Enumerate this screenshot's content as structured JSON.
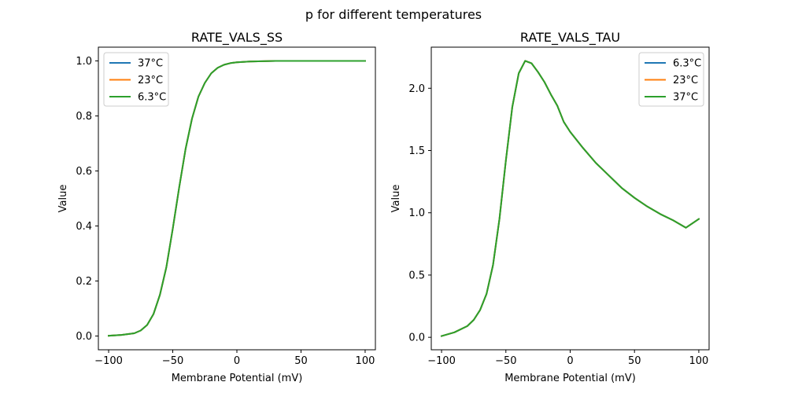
{
  "figure": {
    "suptitle": "p for different temperatures"
  },
  "chart_data": [
    {
      "type": "line",
      "title": "RATE_VALS_SS",
      "xlabel": "Membrane Potential (mV)",
      "ylabel": "Value",
      "xlim": [
        -108,
        108
      ],
      "ylim": [
        -0.05,
        1.05
      ],
      "xticks": [
        -100,
        -50,
        0,
        50,
        100
      ],
      "xtick_labels": [
        "−100",
        "−50",
        "0",
        "50",
        "100"
      ],
      "yticks": [
        0.0,
        0.2,
        0.4,
        0.6,
        0.8,
        1.0
      ],
      "ytick_labels": [
        "0.0",
        "0.2",
        "0.4",
        "0.6",
        "0.8",
        "1.0"
      ],
      "grid": false,
      "legend": "upper-left",
      "x": [
        -100,
        -90,
        -80,
        -75,
        -70,
        -65,
        -60,
        -55,
        -50,
        -45,
        -40,
        -35,
        -30,
        -25,
        -20,
        -15,
        -10,
        -5,
        0,
        10,
        20,
        30,
        50,
        75,
        100
      ],
      "series": [
        {
          "name": "37°C",
          "color": "#1f77b4",
          "values": [
            0.001,
            0.004,
            0.01,
            0.02,
            0.04,
            0.08,
            0.15,
            0.25,
            0.39,
            0.54,
            0.68,
            0.79,
            0.87,
            0.92,
            0.955,
            0.975,
            0.986,
            0.992,
            0.995,
            0.998,
            0.999,
            1.0,
            1.0,
            1.0,
            1.0
          ]
        },
        {
          "name": "23°C",
          "color": "#ff7f0e",
          "values": [
            0.001,
            0.004,
            0.01,
            0.02,
            0.04,
            0.08,
            0.15,
            0.25,
            0.39,
            0.54,
            0.68,
            0.79,
            0.87,
            0.92,
            0.955,
            0.975,
            0.986,
            0.992,
            0.995,
            0.998,
            0.999,
            1.0,
            1.0,
            1.0,
            1.0
          ]
        },
        {
          "name": "6.3°C",
          "color": "#2ca02c",
          "values": [
            0.001,
            0.004,
            0.01,
            0.02,
            0.04,
            0.08,
            0.15,
            0.25,
            0.39,
            0.54,
            0.68,
            0.79,
            0.87,
            0.92,
            0.955,
            0.975,
            0.986,
            0.992,
            0.995,
            0.998,
            0.999,
            1.0,
            1.0,
            1.0,
            1.0
          ]
        }
      ]
    },
    {
      "type": "line",
      "title": "RATE_VALS_TAU",
      "xlabel": "Membrane Potential (mV)",
      "ylabel": "Value",
      "xlim": [
        -108,
        108
      ],
      "ylim": [
        -0.1,
        2.33
      ],
      "xticks": [
        -100,
        -50,
        0,
        50,
        100
      ],
      "xtick_labels": [
        "−100",
        "−50",
        "0",
        "50",
        "100"
      ],
      "yticks": [
        0.0,
        0.5,
        1.0,
        1.5,
        2.0
      ],
      "ytick_labels": [
        "0.0",
        "0.5",
        "1.0",
        "1.5",
        "2.0"
      ],
      "grid": false,
      "legend": "upper-right",
      "x": [
        -100,
        -90,
        -80,
        -75,
        -70,
        -65,
        -60,
        -55,
        -50,
        -45,
        -40,
        -35,
        -30,
        -25,
        -20,
        -15,
        -10,
        -5,
        0,
        10,
        20,
        30,
        40,
        50,
        60,
        70,
        80,
        90,
        100
      ],
      "series": [
        {
          "name": "6.3°C",
          "color": "#1f77b4",
          "values": [
            0.01,
            0.04,
            0.09,
            0.14,
            0.22,
            0.35,
            0.58,
            0.95,
            1.42,
            1.85,
            2.12,
            2.22,
            2.2,
            2.13,
            2.05,
            1.95,
            1.86,
            1.73,
            1.65,
            1.52,
            1.4,
            1.3,
            1.2,
            1.12,
            1.05,
            0.99,
            0.94,
            0.88,
            0.95
          ]
        },
        {
          "name": "23°C",
          "color": "#ff7f0e",
          "values": [
            0.01,
            0.04,
            0.09,
            0.14,
            0.22,
            0.35,
            0.58,
            0.95,
            1.42,
            1.85,
            2.12,
            2.22,
            2.2,
            2.13,
            2.05,
            1.95,
            1.86,
            1.73,
            1.65,
            1.52,
            1.4,
            1.3,
            1.2,
            1.12,
            1.05,
            0.99,
            0.94,
            0.88,
            0.95
          ]
        },
        {
          "name": "37°C",
          "color": "#2ca02c",
          "values": [
            0.01,
            0.04,
            0.09,
            0.14,
            0.22,
            0.35,
            0.58,
            0.95,
            1.42,
            1.85,
            2.12,
            2.22,
            2.2,
            2.13,
            2.05,
            1.95,
            1.86,
            1.73,
            1.65,
            1.52,
            1.4,
            1.3,
            1.2,
            1.12,
            1.05,
            0.99,
            0.94,
            0.88,
            0.95
          ]
        }
      ]
    }
  ]
}
